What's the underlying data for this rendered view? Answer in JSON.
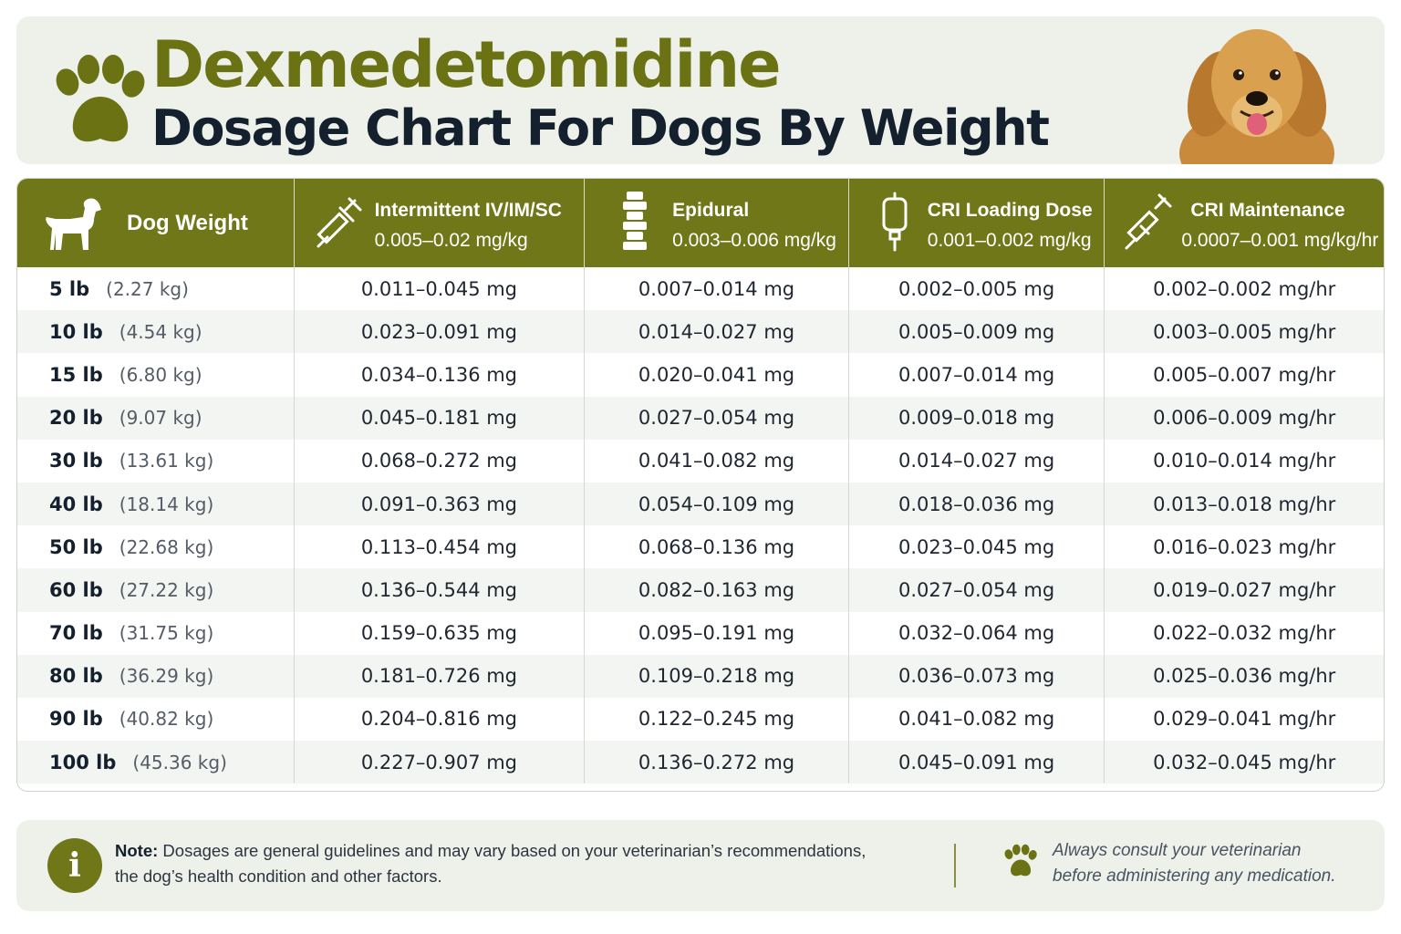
{
  "header": {
    "title_line1": "Dexmedetomidine",
    "title_line2": "Dosage Chart For Dogs By Weight"
  },
  "colors": {
    "accent": "#6f7718",
    "title_dark": "#15202e",
    "panel_bg": "#eef1ea"
  },
  "table": {
    "columns": [
      {
        "label": "Dog Weight",
        "sub": "",
        "icon": "dog-icon"
      },
      {
        "label": "Intermittent IV/IM/SC",
        "sub": "0.005–0.02 mg/kg",
        "icon": "syringe-icon"
      },
      {
        "label": "Epidural",
        "sub": "0.003–0.006 mg/kg",
        "icon": "spine-icon"
      },
      {
        "label": "CRI Loading Dose",
        "sub": "0.001–0.002 mg/kg",
        "icon": "iv-bag-icon"
      },
      {
        "label": "CRI Maintenance",
        "sub": "0.0007–0.001 mg/kg/hr",
        "icon": "syringe-pump-icon"
      }
    ],
    "rows": [
      {
        "lb": "5 lb",
        "kg": "(2.27 kg)",
        "iv": "0.011–0.045 mg",
        "epi": "0.007–0.014 mg",
        "load": "0.002–0.005 mg",
        "maint": "0.002–0.002 mg/hr"
      },
      {
        "lb": "10 lb",
        "kg": "(4.54 kg)",
        "iv": "0.023–0.091 mg",
        "epi": "0.014–0.027 mg",
        "load": "0.005–0.009 mg",
        "maint": "0.003–0.005 mg/hr"
      },
      {
        "lb": "15 lb",
        "kg": "(6.80 kg)",
        "iv": "0.034–0.136 mg",
        "epi": "0.020–0.041 mg",
        "load": "0.007–0.014 mg",
        "maint": "0.005–0.007 mg/hr"
      },
      {
        "lb": "20 lb",
        "kg": "(9.07 kg)",
        "iv": "0.045–0.181 mg",
        "epi": "0.027–0.054 mg",
        "load": "0.009–0.018 mg",
        "maint": "0.006–0.009 mg/hr"
      },
      {
        "lb": "30 lb",
        "kg": "(13.61 kg)",
        "iv": "0.068–0.272 mg",
        "epi": "0.041–0.082 mg",
        "load": "0.014–0.027 mg",
        "maint": "0.010–0.014 mg/hr"
      },
      {
        "lb": "40 lb",
        "kg": "(18.14 kg)",
        "iv": "0.091–0.363 mg",
        "epi": "0.054–0.109 mg",
        "load": "0.018–0.036 mg",
        "maint": "0.013–0.018 mg/hr"
      },
      {
        "lb": "50 lb",
        "kg": "(22.68 kg)",
        "iv": "0.113–0.454 mg",
        "epi": "0.068–0.136 mg",
        "load": "0.023–0.045 mg",
        "maint": "0.016–0.023 mg/hr"
      },
      {
        "lb": "60 lb",
        "kg": "(27.22 kg)",
        "iv": "0.136–0.544 mg",
        "epi": "0.082–0.163 mg",
        "load": "0.027–0.054 mg",
        "maint": "0.019–0.027 mg/hr"
      },
      {
        "lb": "70 lb",
        "kg": "(31.75 kg)",
        "iv": "0.159–0.635 mg",
        "epi": "0.095–0.191 mg",
        "load": "0.032–0.064 mg",
        "maint": "0.022–0.032 mg/hr"
      },
      {
        "lb": "80 lb",
        "kg": "(36.29 kg)",
        "iv": "0.181–0.726 mg",
        "epi": "0.109–0.218 mg",
        "load": "0.036–0.073 mg",
        "maint": "0.025–0.036 mg/hr"
      },
      {
        "lb": "90 lb",
        "kg": "(40.82 kg)",
        "iv": "0.204–0.816 mg",
        "epi": "0.122–0.245 mg",
        "load": "0.041–0.082 mg",
        "maint": "0.029–0.041 mg/hr"
      },
      {
        "lb": "100 lb",
        "kg": "(45.36 kg)",
        "iv": "0.227–0.907 mg",
        "epi": "0.136–0.272 mg",
        "load": "0.045–0.091 mg",
        "maint": "0.032–0.045 mg/hr"
      }
    ]
  },
  "note": {
    "label": "Note:",
    "text_line1": "Dosages are general guidelines and may vary based on your veterinarian’s recommendations,",
    "text_line2": "the dog’s health condition and other factors.",
    "right_line1": "Always consult your veterinarian",
    "right_line2": "before administering any medication."
  }
}
